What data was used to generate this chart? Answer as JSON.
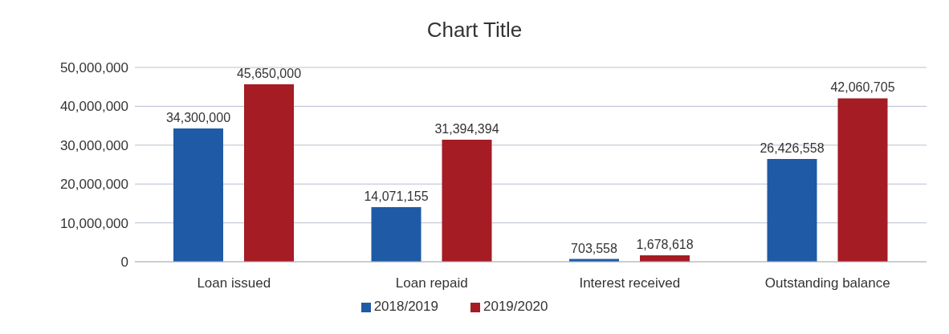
{
  "chart_data": {
    "type": "bar",
    "title": "Chart Title",
    "categories": [
      "Loan issued",
      "Loan repaid",
      "Interest received",
      "Outstanding balance"
    ],
    "series": [
      {
        "name": "2018/2019",
        "color": "#1f5aa6",
        "values": [
          34300000,
          14071155,
          703558,
          26426558
        ],
        "value_labels": [
          "34,300,000",
          "14,071,155",
          "703,558",
          "26,426,558"
        ]
      },
      {
        "name": "2019/2020",
        "color": "#a51c24",
        "values": [
          45650000,
          31394394,
          1678618,
          42060705
        ],
        "value_labels": [
          "45,650,000",
          "31,394,394",
          "1,678,618",
          "42,060,705"
        ]
      }
    ],
    "ylim": [
      0,
      50000000
    ],
    "yticks": [
      {
        "value": 0,
        "label": "0"
      },
      {
        "value": 10000000,
        "label": "10,000,000"
      },
      {
        "value": 20000000,
        "label": "20,000,000"
      },
      {
        "value": 30000000,
        "label": "30,000,000"
      },
      {
        "value": 40000000,
        "label": "40,000,000"
      },
      {
        "value": 50000000,
        "label": "50,000,000"
      }
    ],
    "grid": "y",
    "legend": "bottom"
  }
}
